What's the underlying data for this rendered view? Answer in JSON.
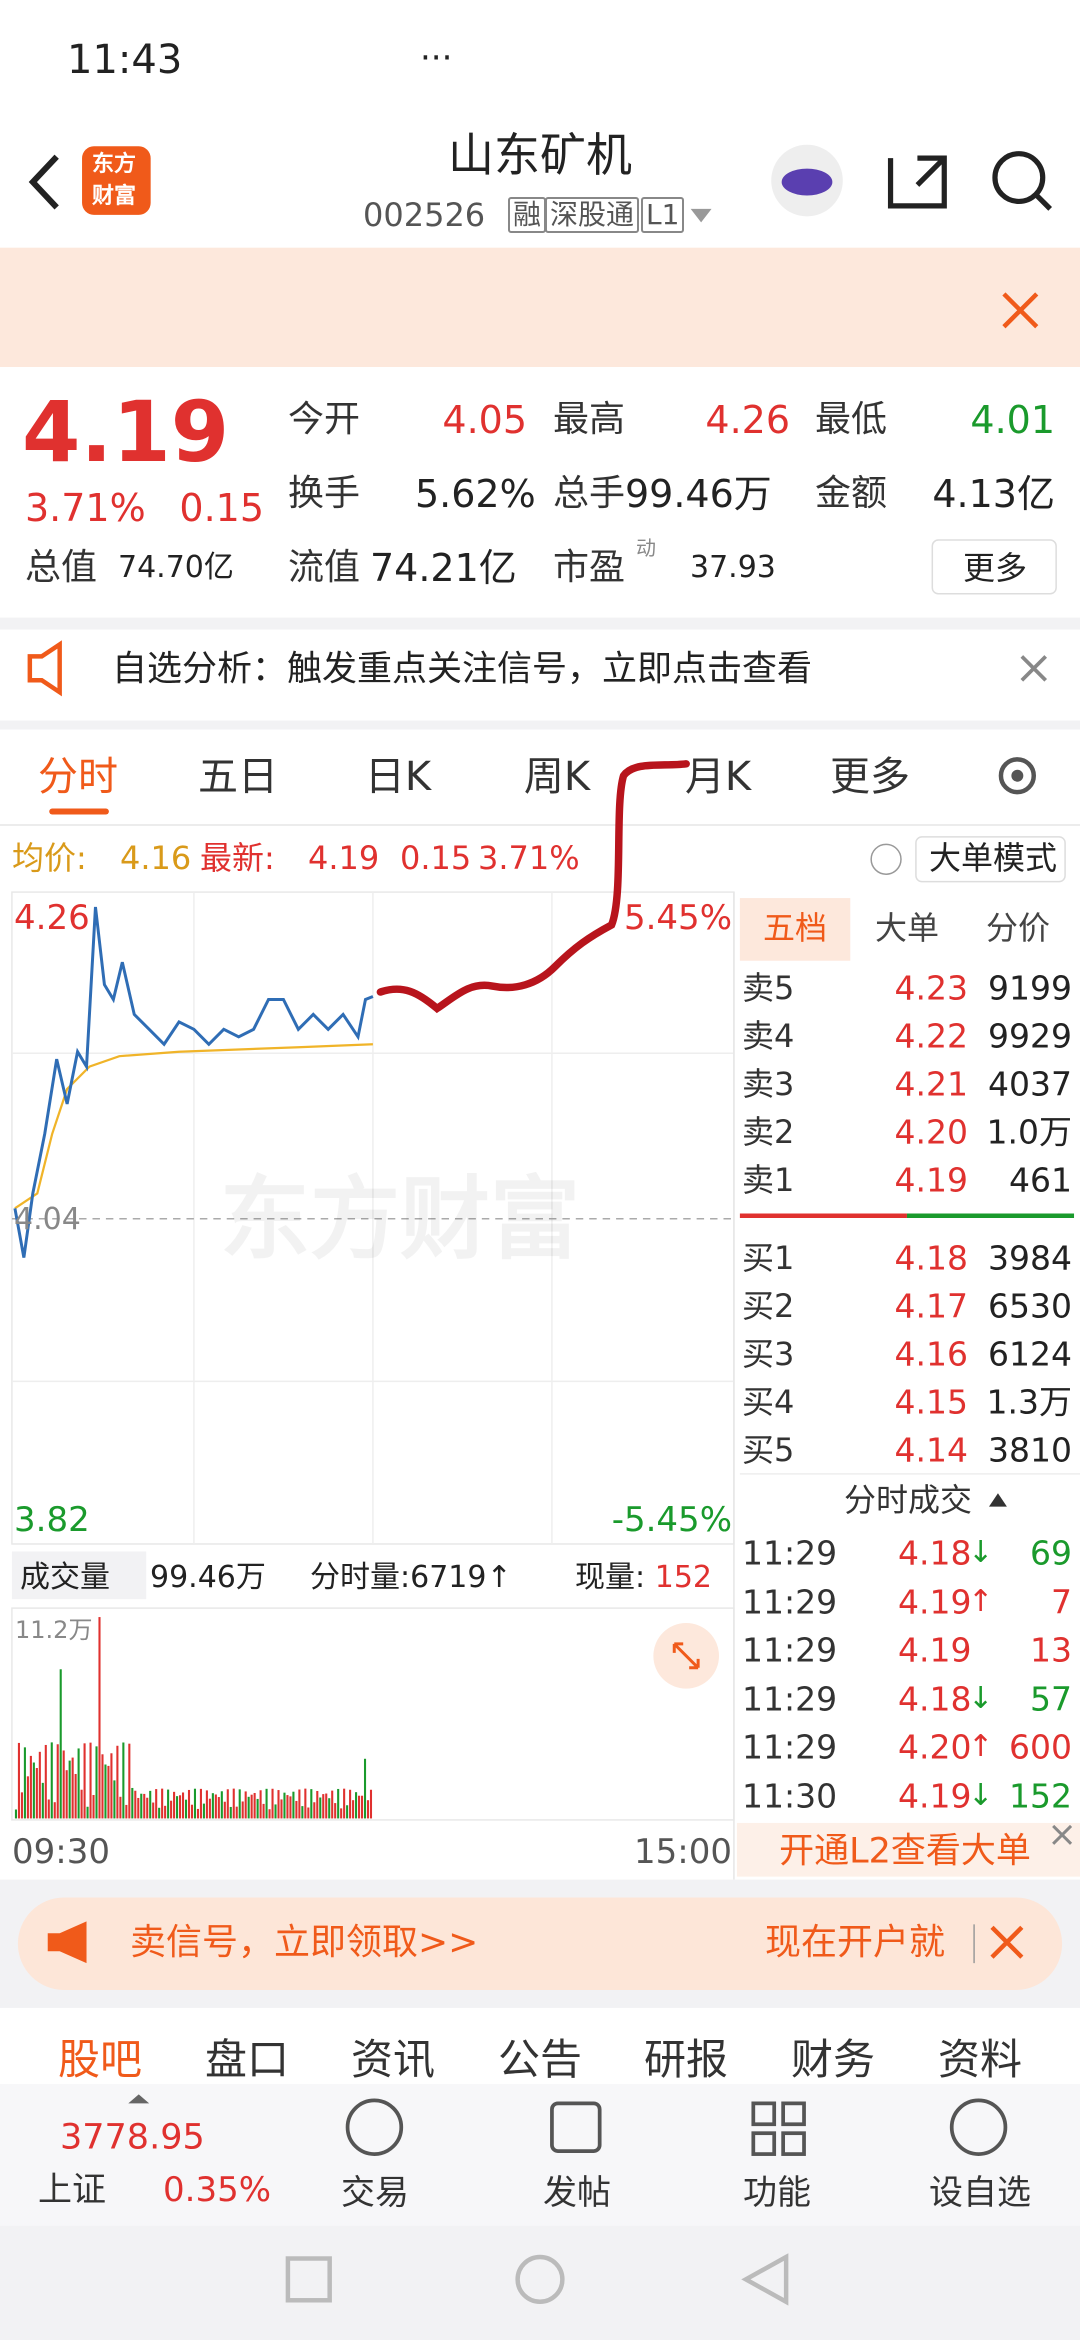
{
  "status_bar": {
    "time": "11:43",
    "more": "···"
  },
  "header": {
    "logo": [
      "东方",
      "财富"
    ],
    "title": "山东矿机",
    "code": "002526",
    "tags": [
      "融",
      "深股通",
      "L1"
    ]
  },
  "quote": {
    "price": "4.19",
    "change_pct": "3.71%",
    "change": "0.15",
    "fields": [
      {
        "label": "今开",
        "value": "4.05"
      },
      {
        "label": "最高",
        "value": "4.26"
      },
      {
        "label": "最低",
        "value": "4.01"
      },
      {
        "label": "换手",
        "value": "5.62%"
      },
      {
        "label": "总手",
        "value": "99.46万"
      },
      {
        "label": "金额",
        "value": "4.13亿"
      },
      {
        "label": "总值",
        "value": "74.70亿"
      },
      {
        "label": "流值",
        "value": "74.21亿"
      },
      {
        "label": "市盈",
        "value": "37.93"
      }
    ],
    "pe_note": "动",
    "more_button": "更多"
  },
  "notice": "自选分析：触发重点关注信号，立即点击查看",
  "tabs": [
    "分时",
    "五日",
    "日K",
    "周K",
    "月K",
    "更多"
  ],
  "summary": {
    "avg_label": "均价:",
    "avg": "4.16",
    "last_label": "最新:",
    "last": "4.19",
    "change": "0.15",
    "change_pct": "3.71%",
    "mode_button": "大单模式"
  },
  "chart": {
    "high": "4.26",
    "high_pct": "5.45%",
    "base": "4.04",
    "low": "3.82",
    "low_pct": "-5.45%",
    "watermark": "东方财富"
  },
  "volume": {
    "label": "成交量",
    "total": "99.46万",
    "tick": "分时量:6719↑",
    "current_label": "现量:",
    "current": "152",
    "max": "11.2万",
    "start": "09:30",
    "end": "15:00"
  },
  "order_book": {
    "tabs": [
      "五档",
      "大单",
      "分价"
    ],
    "asks": [
      [
        "卖5",
        "4.23",
        "9199"
      ],
      [
        "卖4",
        "4.22",
        "9929"
      ],
      [
        "卖3",
        "4.21",
        "4037"
      ],
      [
        "卖2",
        "4.20",
        "1.0万"
      ],
      [
        "卖1",
        "4.19",
        "461"
      ]
    ],
    "bids": [
      [
        "买1",
        "4.18",
        "3984"
      ],
      [
        "买2",
        "4.17",
        "6530"
      ],
      [
        "买3",
        "4.16",
        "6124"
      ],
      [
        "买4",
        "4.15",
        "1.3万"
      ],
      [
        "买5",
        "4.14",
        "3810"
      ]
    ],
    "trades_title": "分时成交",
    "trades": [
      [
        "11:29",
        "4.18",
        "↓",
        "69"
      ],
      [
        "11:29",
        "4.19",
        "↑",
        "7"
      ],
      [
        "11:29",
        "4.19",
        "13"
      ],
      [
        "11:29",
        "4.18",
        "↓",
        "57"
      ],
      [
        "11:29",
        "4.20",
        "↑",
        "600"
      ],
      [
        "11:30",
        "4.19",
        "↓",
        "152"
      ]
    ],
    "l2": "开通L2查看大单"
  },
  "promo": {
    "text": "卖信号，立即领取>>",
    "right": "现在开户就"
  },
  "bottom_tabs": [
    "股吧",
    "盘口",
    "资讯",
    "公告",
    "研报",
    "财务",
    "资料"
  ],
  "nav": {
    "index_value": "3778.95",
    "index_name": "上证",
    "index_change": "0.35%",
    "items": [
      "交易",
      "发帖",
      "功能",
      "设自选"
    ]
  }
}
